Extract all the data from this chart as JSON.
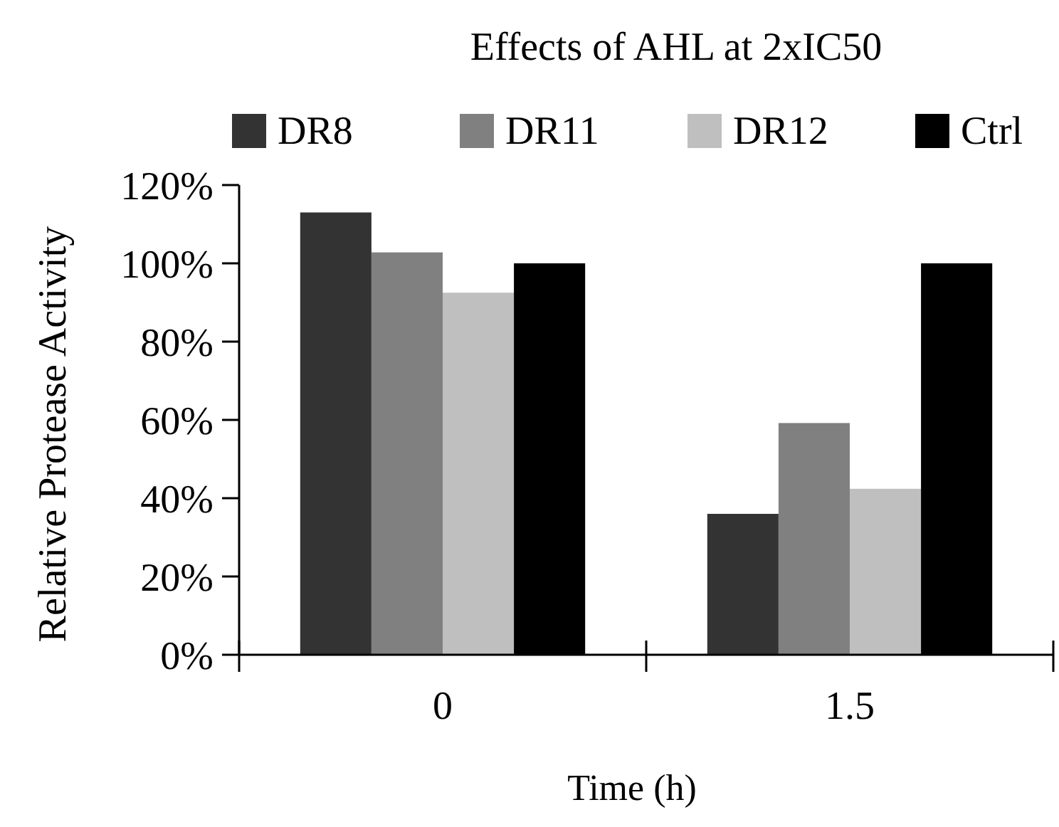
{
  "chart_data": {
    "type": "bar",
    "title": "Effects of AHL at 2xIC50",
    "xlabel": "Time (h)",
    "ylabel": "Relative Protease Activity",
    "categories": [
      "0",
      "1.5"
    ],
    "series": [
      {
        "name": "DR8",
        "color": "#333333",
        "values": [
          113,
          36
        ]
      },
      {
        "name": "DR11",
        "color": "#808080",
        "values": [
          102.8,
          59.2
        ]
      },
      {
        "name": "DR12",
        "color": "#bfbfbf",
        "values": [
          92.5,
          42.4
        ]
      },
      {
        "name": "Ctrl",
        "color": "#000000",
        "values": [
          100,
          100
        ]
      }
    ],
    "ylim": [
      0,
      120
    ],
    "yticks": [
      {
        "value": 0,
        "label": "0%"
      },
      {
        "value": 20,
        "label": "20%"
      },
      {
        "value": 40,
        "label": "40%"
      },
      {
        "value": 60,
        "label": "60%"
      },
      {
        "value": 80,
        "label": "80%"
      },
      {
        "value": 100,
        "label": "100%"
      },
      {
        "value": 120,
        "label": "120%"
      }
    ],
    "grid": false,
    "legend": "top"
  }
}
